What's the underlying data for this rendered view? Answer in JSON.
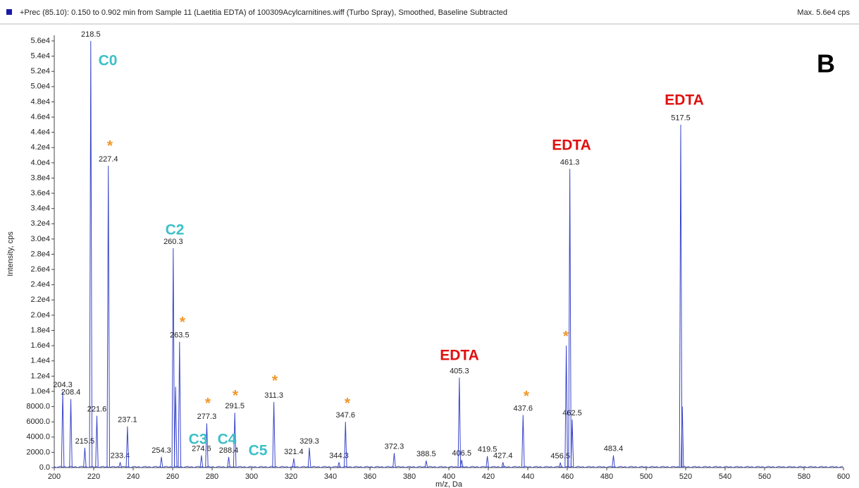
{
  "chart_data": {
    "type": "spectrum",
    "title": "+Prec (85.10): 0.150 to 0.902 min from Sample 11 (Laetitia EDTA) of 100309Acylcarnitines.wiff (Turbo Spray), Smoothed, Baseline Subtracted",
    "subtitle": "Max. 5.6e4 cps",
    "panel_label": "B",
    "x_label": "m/z, Da",
    "y_label": "Intensity, cps",
    "color": "#3a46c8",
    "x": [
      204.3,
      208.4,
      215.5,
      218.5,
      221.6,
      227.4,
      233.4,
      237.1,
      254.3,
      260.3,
      261.5,
      263.5,
      274.6,
      277.3,
      288.4,
      291.5,
      311.3,
      321.4,
      329.3,
      344.3,
      347.6,
      372.3,
      388.5,
      405.3,
      406.5,
      419.5,
      427.4,
      437.6,
      456.5,
      459.5,
      461.3,
      462.5,
      483.4,
      517.5,
      518.3
    ],
    "values": [
      10000,
      9000,
      2600,
      56000,
      6800,
      39600,
      700,
      5400,
      1400,
      28800,
      10600,
      16500,
      1600,
      5800,
      1400,
      7200,
      8600,
      1200,
      2600,
      700,
      6000,
      1900,
      900,
      11800,
      1000,
      1500,
      700,
      6900,
      650,
      16000,
      39200,
      6300,
      1600,
      45000,
      8000
    ],
    "labels": [
      "204.3",
      "208.4",
      "215.5",
      "218.5",
      "221.6",
      "227.4",
      "233.4",
      "237.1",
      "254.3",
      "260.3",
      null,
      "263.5",
      "274.6",
      "277.3",
      "288.4",
      "291.5",
      "311.3",
      "321.4",
      "329.3",
      "344.3",
      "347.6",
      "372.3",
      "388.5",
      "405.3",
      "406.5",
      "419.5",
      "427.4",
      "437.6",
      "456.5",
      null,
      "461.3",
      "462.5",
      "483.4",
      "517.5",
      null
    ],
    "annotations": [
      "C0",
      "C2",
      "C3",
      "C4",
      "C5",
      "EDTA",
      "EDTA",
      "EDTA",
      "EDTA",
      "*",
      "*",
      "*",
      "*",
      "*",
      "*",
      "*",
      "*"
    ],
    "xlim": [
      200,
      600
    ],
    "xticks": [
      200,
      220,
      240,
      260,
      280,
      300,
      320,
      340,
      360,
      380,
      400,
      420,
      440,
      460,
      480,
      500,
      520,
      540,
      560,
      580,
      600
    ],
    "ylim": [
      0,
      56000
    ],
    "yticks": [
      {
        "value": 0,
        "label": "0.0"
      },
      {
        "value": 2000,
        "label": "2000.0"
      },
      {
        "value": 4000,
        "label": "4000.0"
      },
      {
        "value": 6000,
        "label": "6000.0"
      },
      {
        "value": 8000,
        "label": "8000.0"
      },
      {
        "value": 10000,
        "label": "1.0e4"
      },
      {
        "value": 12000,
        "label": "1.2e4"
      },
      {
        "value": 14000,
        "label": "1.4e4"
      },
      {
        "value": 16000,
        "label": "1.6e4"
      },
      {
        "value": 18000,
        "label": "1.8e4"
      },
      {
        "value": 20000,
        "label": "2.0e4"
      },
      {
        "value": 22000,
        "label": "2.2e4"
      },
      {
        "value": 24000,
        "label": "2.4e4"
      },
      {
        "value": 26000,
        "label": "2.6e4"
      },
      {
        "value": 28000,
        "label": "2.8e4"
      },
      {
        "value": 30000,
        "label": "3.0e4"
      },
      {
        "value": 32000,
        "label": "3.2e4"
      },
      {
        "value": 34000,
        "label": "3.4e4"
      },
      {
        "value": 36000,
        "label": "3.6e4"
      },
      {
        "value": 38000,
        "label": "3.8e4"
      },
      {
        "value": 40000,
        "label": "4.0e4"
      },
      {
        "value": 42000,
        "label": "4.2e4"
      },
      {
        "value": 44000,
        "label": "4.4e4"
      },
      {
        "value": 46000,
        "label": "4.6e4"
      },
      {
        "value": 48000,
        "label": "4.8e4"
      },
      {
        "value": 50000,
        "label": "5.0e4"
      },
      {
        "value": 52000,
        "label": "5.2e4"
      },
      {
        "value": 54000,
        "label": "5.4e4"
      },
      {
        "value": 56000,
        "label": "5.6e4"
      }
    ],
    "grid": false
  }
}
